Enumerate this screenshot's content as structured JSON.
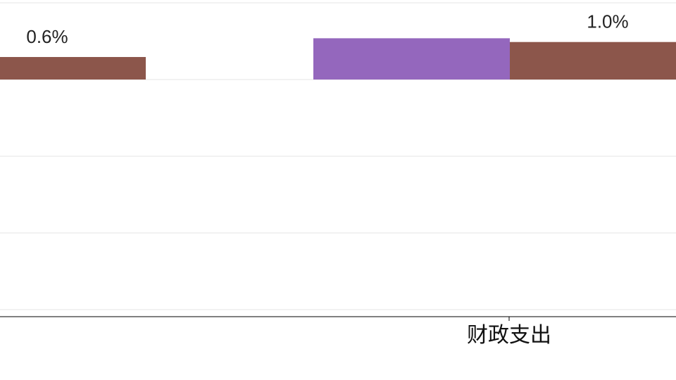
{
  "chart_data": {
    "type": "bar",
    "categories": [
      "财政支出"
    ],
    "series": [
      {
        "color": "#8c564b",
        "values": [
          0.6
        ],
        "label": "0.6%"
      },
      {
        "color": "#9467bd",
        "values": [
          1.1
        ],
        "label": ""
      },
      {
        "color": "#8c564b",
        "values": [
          1.0
        ],
        "label": "1.0%"
      }
    ],
    "grid": true,
    "legend": "none"
  }
}
